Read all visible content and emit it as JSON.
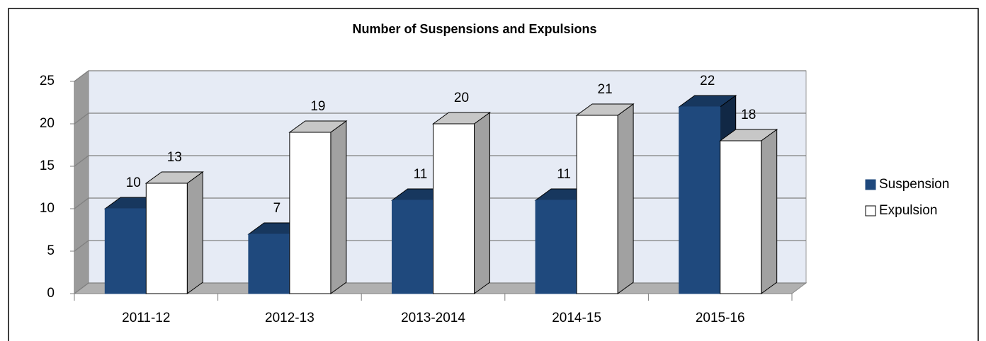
{
  "chart_data": {
    "type": "bar3d",
    "title": "Number of Suspensions and Expulsions",
    "categories": [
      "2011-12",
      "2012-13",
      "2013-2014",
      "2014-15",
      "2015-16"
    ],
    "series": [
      {
        "name": "Suspension",
        "color": "#1f497d",
        "values": [
          10,
          7,
          11,
          11,
          22
        ]
      },
      {
        "name": "Expulsion",
        "color": "#ffffff",
        "values": [
          13,
          19,
          20,
          21,
          18
        ]
      }
    ],
    "ylim": [
      0,
      25
    ],
    "yticks": [
      0,
      5,
      10,
      15,
      20,
      25
    ],
    "grid": true,
    "legend": "right"
  }
}
